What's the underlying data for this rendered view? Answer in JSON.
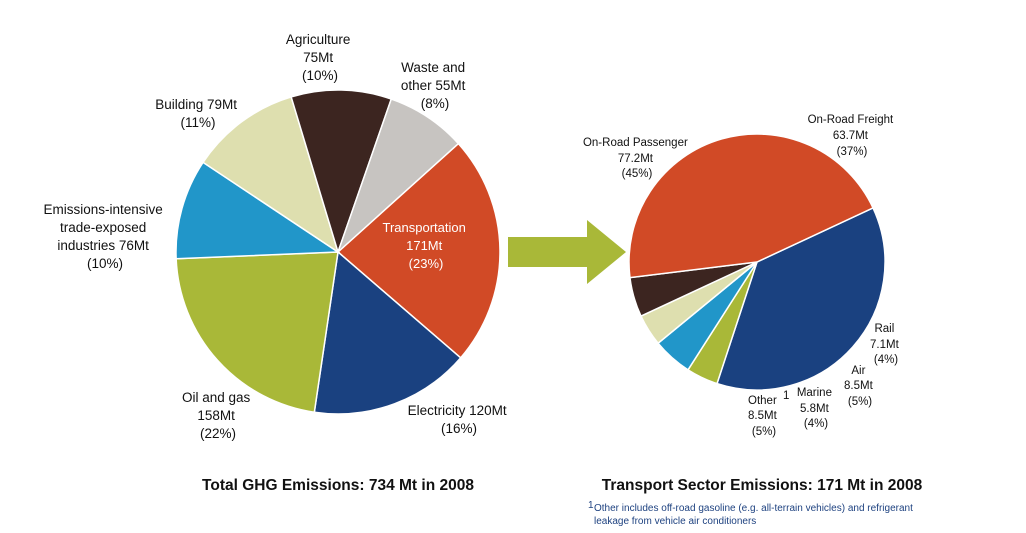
{
  "colors": {
    "transportation": "#d14a26",
    "electricity": "#1a4180",
    "oil_gas": "#a9b838",
    "emissions_intensive": "#2196c9",
    "building": "#dedfaf",
    "agriculture": "#3c2520",
    "waste": "#c7c4c1",
    "arrow": "#a9b838",
    "footnote": "#1e4280"
  },
  "chart_data": [
    {
      "type": "pie",
      "title": "Total GHG Emissions: 734 Mt in 2008",
      "slices": [
        {
          "key": "transportation",
          "label": [
            "Transportation",
            "171Mt",
            "(23%)"
          ],
          "value": 23
        },
        {
          "key": "electricity",
          "label": [
            "Electricity 120Mt",
            "(16%)"
          ],
          "value": 16
        },
        {
          "key": "oil_gas",
          "label": [
            "Oil and gas",
            "158Mt",
            "(22%)"
          ],
          "value": 22
        },
        {
          "key": "emissions_intensive",
          "label": [
            "Emissions-intensive",
            "trade-exposed",
            "industries 76Mt",
            "(10%)"
          ],
          "value": 10
        },
        {
          "key": "building",
          "label": [
            "Building 79Mt",
            "(11%)"
          ],
          "value": 11
        },
        {
          "key": "agriculture",
          "label": [
            "Agriculture",
            "75Mt",
            "(10%)"
          ],
          "value": 10
        },
        {
          "key": "waste",
          "label": [
            "Waste and",
            "other 55Mt",
            "(8%)"
          ],
          "value": 8
        }
      ]
    },
    {
      "type": "pie",
      "title": "Transport Sector Emissions: 171 Mt in 2008",
      "slices": [
        {
          "key": "on_road_freight",
          "label": [
            "On-Road Freight",
            "63.7Mt",
            "(37%)"
          ],
          "value": 37
        },
        {
          "key": "rail",
          "label": [
            "Rail",
            "7.1Mt",
            "(4%)"
          ],
          "value": 4
        },
        {
          "key": "air",
          "label": [
            "Air",
            "8.5Mt",
            "(5%)"
          ],
          "value": 5
        },
        {
          "key": "marine",
          "label": [
            "Marine",
            "5.8Mt",
            "(4%)"
          ],
          "value": 4
        },
        {
          "key": "other",
          "label": [
            "Other",
            "8.5Mt",
            "(5%)"
          ],
          "footnote_mark": "1",
          "value": 5
        },
        {
          "key": "on_road_passenger",
          "label": [
            "On-Road Passenger",
            "77.2Mt",
            "(45%)"
          ],
          "value": 45
        }
      ]
    }
  ],
  "slice_colors": {
    "on_road_freight": "#1a4180",
    "rail": "#a9b838",
    "air": "#2196c9",
    "marine": "#dedfaf",
    "other": "#3c2520",
    "on_road_passenger": "#d14a26"
  },
  "footnote": {
    "mark": "1",
    "lines": [
      "Other includes  off-road gasoline (e.g. all-terrain vehicles) and refrigerant",
      "leakage from vehicle air conditioners"
    ]
  }
}
